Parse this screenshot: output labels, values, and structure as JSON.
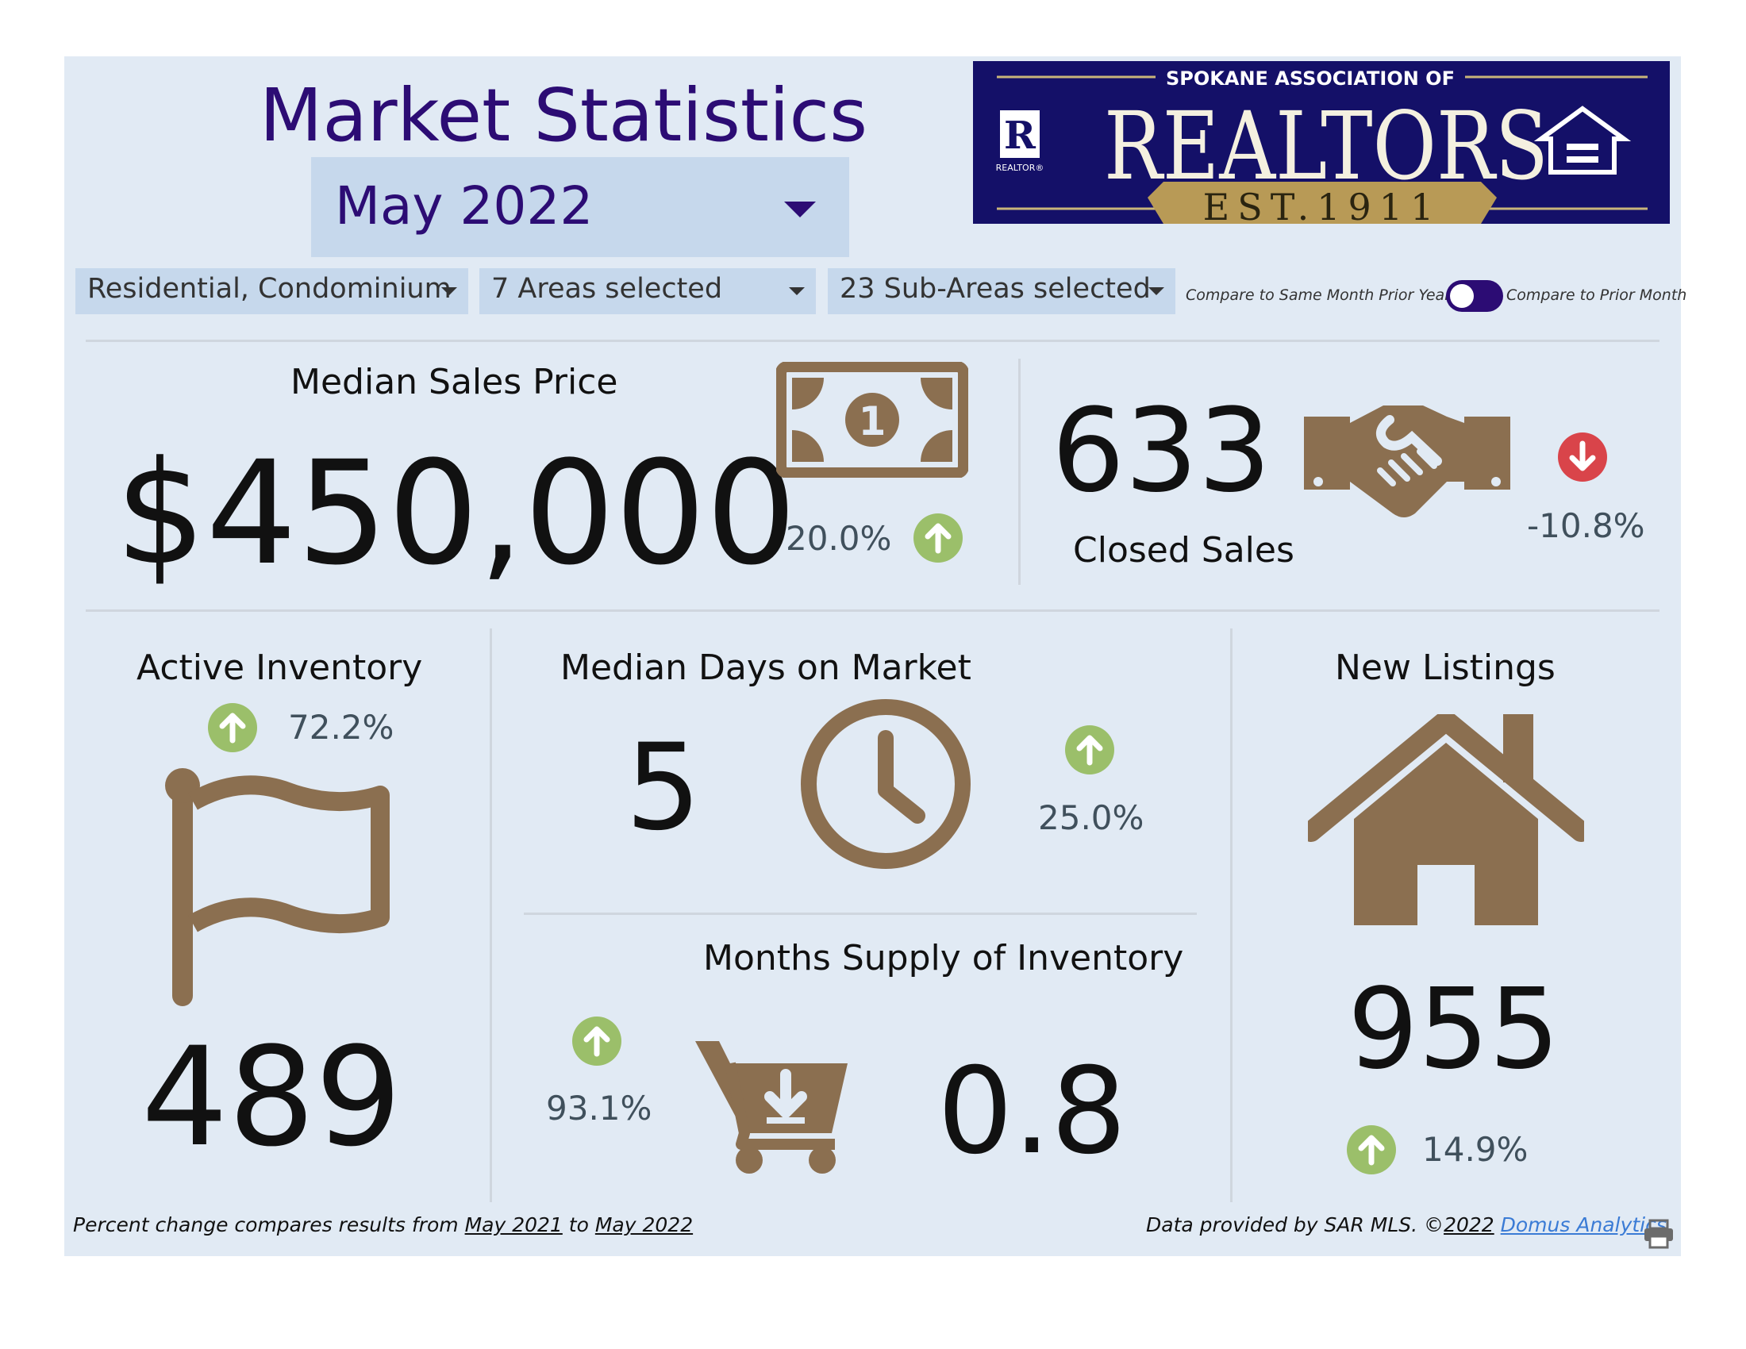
{
  "header": {
    "title": "Market Statistics",
    "month_selected": "May 2022"
  },
  "logo": {
    "top_text": "SPOKANE ASSOCIATION OF",
    "main_text": "REALTORS",
    "est_text": "EST.1911",
    "r_mark": "R",
    "r_caption": "REALTOR®"
  },
  "filters": {
    "property_type": "Residential, Condominium",
    "areas": "7 Areas selected",
    "sub_areas": "23 Sub-Areas selected",
    "toggle_left_label": "Compare to Same Month Prior Year",
    "toggle_right_label": "Compare to Prior Month"
  },
  "kpis": {
    "median_sales_price": {
      "title": "Median Sales Price",
      "value": "$450,000",
      "change": "20.0%",
      "direction": "up"
    },
    "closed_sales": {
      "title": "Closed Sales",
      "value": "633",
      "change": "-10.8%",
      "direction": "down"
    },
    "active_inventory": {
      "title": "Active Inventory",
      "value": "489",
      "change": "72.2%",
      "direction": "up"
    },
    "median_days_on_market": {
      "title": "Median Days on Market",
      "value": "5",
      "change": "25.0%",
      "direction": "up"
    },
    "months_supply": {
      "title": "Months Supply of Inventory",
      "value": "0.8",
      "change": "93.1%",
      "direction": "up"
    },
    "new_listings": {
      "title": "New Listings",
      "value": "955",
      "change": "14.9%",
      "direction": "up"
    }
  },
  "colors": {
    "accent": "#2c0c74",
    "icon_brown": "#8b6f50",
    "up_green": "#9bbf6a",
    "down_red": "#d9444a",
    "panel_bg": "#e1eaf4",
    "slicer_bg": "#c6d8ec"
  },
  "footer": {
    "left_prefix": "Percent change compares results from",
    "left_from": "May 2021",
    "left_mid": "to",
    "left_to": "May 2022",
    "right_prefix": "Data provided by SAR MLS. ©",
    "right_year": "2022",
    "right_link": "Domus Analytics"
  },
  "icons": {
    "price": "money-bill-icon",
    "closed": "handshake-icon",
    "inventory": "flag-icon",
    "days": "clock-icon",
    "supply": "cart-download-icon",
    "listings": "house-icon",
    "print": "print-icon"
  }
}
